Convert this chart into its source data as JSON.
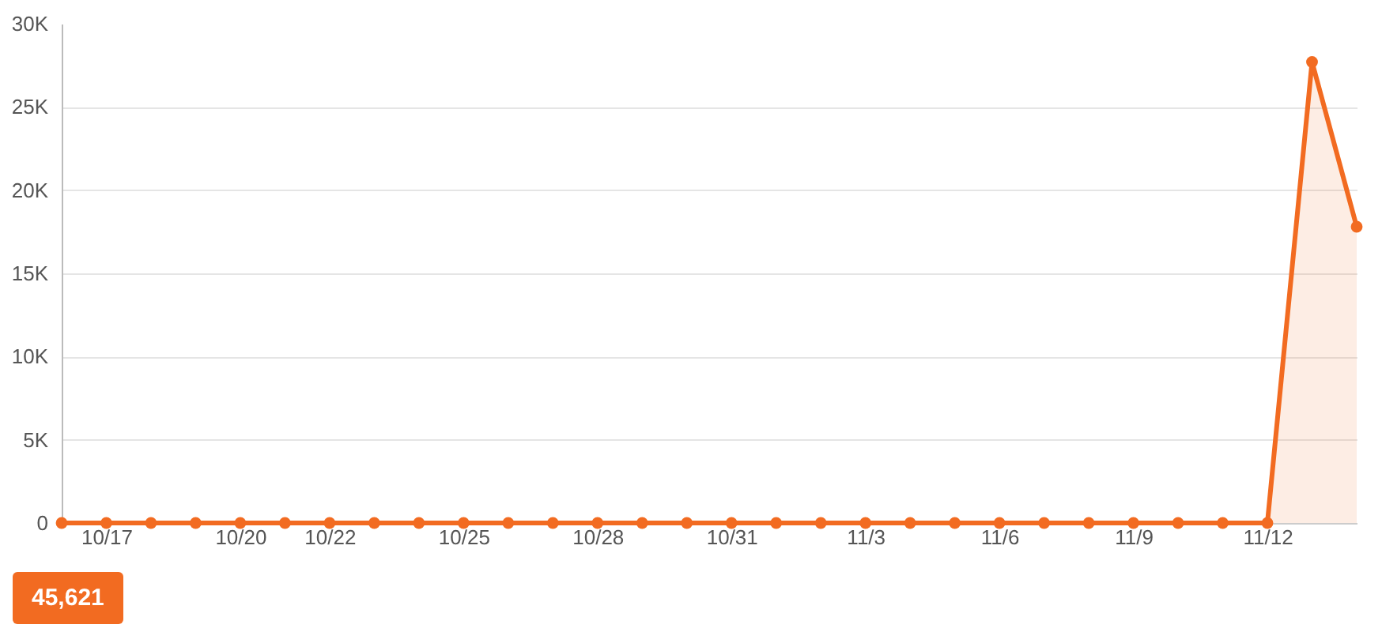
{
  "chart_data": {
    "type": "area",
    "x": [
      "--10-16",
      "--10-17",
      "--10-18",
      "--10-19",
      "--10-20",
      "--10-21",
      "--10-22",
      "--10-23",
      "--10-24",
      "--10-25",
      "--10-26",
      "--10-27",
      "--10-28",
      "--10-29",
      "--10-30",
      "--10-31",
      "--11-01",
      "--11-02",
      "--11-03",
      "--11-04",
      "--11-05",
      "--11-06",
      "--11-07",
      "--11-08",
      "--11-09",
      "--11-10",
      "--11-11",
      "--11-12",
      "--11-13",
      "--11-14"
    ],
    "series": [
      {
        "color": "#f26b21",
        "values": [
          0,
          0,
          0,
          0,
          0,
          0,
          0,
          0,
          0,
          0,
          0,
          0,
          0,
          0,
          0,
          0,
          0,
          0,
          0,
          0,
          0,
          0,
          0,
          0,
          0,
          0,
          0,
          0,
          27700,
          17800
        ]
      }
    ],
    "xlim": [
      "--10-16",
      "--11-14"
    ],
    "xticks": [
      {
        "value": "--10-17",
        "label": "10/17"
      },
      {
        "value": "--10-20",
        "label": "10/20"
      },
      {
        "value": "--10-22",
        "label": "10/22"
      },
      {
        "value": "--10-25",
        "label": "10/25"
      },
      {
        "value": "--10-28",
        "label": "10/28"
      },
      {
        "value": "--10-31",
        "label": "10/31"
      },
      {
        "value": "--11-03",
        "label": "11/3"
      },
      {
        "value": "--11-06",
        "label": "11/6"
      },
      {
        "value": "--11-09",
        "label": "11/9"
      },
      {
        "value": "--11-12",
        "label": "11/12"
      }
    ],
    "ylim": [
      0,
      30000
    ],
    "yticks": [
      0,
      {
        "value": 5000,
        "label": "5K"
      },
      {
        "value": 10000,
        "label": "10K"
      },
      {
        "value": 15000,
        "label": "15K"
      },
      {
        "value": 20000,
        "label": "20K"
      },
      {
        "value": 25000,
        "label": "25K"
      },
      {
        "value": 30000,
        "label": "30K"
      }
    ],
    "grid": "y",
    "marker": "circle",
    "line_style": "solid",
    "annotations": [
      "45,621"
    ]
  }
}
